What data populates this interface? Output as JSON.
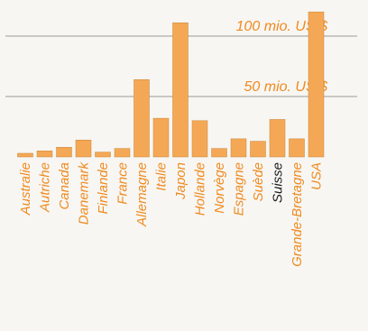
{
  "chart_data": {
    "type": "bar",
    "title": "",
    "xlabel": "",
    "ylabel": "",
    "unit": "mio. US $",
    "ylim": [
      0,
      120
    ],
    "gridlines": [
      {
        "value": 100,
        "label": "100 mio. US $"
      },
      {
        "value": 50,
        "label": "50 mio. US $"
      }
    ],
    "categories": [
      "Australie",
      "Autriche",
      "Canada",
      "Danemark",
      "Finlande",
      "France",
      "Allemagne",
      "Italie",
      "Japon",
      "Hollande",
      "Norvège",
      "Espagne",
      "Suède",
      "Suisse",
      "Grande-Bretagne",
      "USA"
    ],
    "values": [
      3,
      5,
      8,
      14,
      4,
      7,
      64,
      32,
      111,
      30,
      7,
      15,
      13,
      31,
      15,
      120
    ],
    "highlight_category": "Suisse",
    "colors": {
      "bar": "#f4a856",
      "bar_edge": "#c98535",
      "label": "#f08a1e",
      "highlight_label": "#1a1a1a",
      "gridline": "#9a9a9a"
    }
  }
}
